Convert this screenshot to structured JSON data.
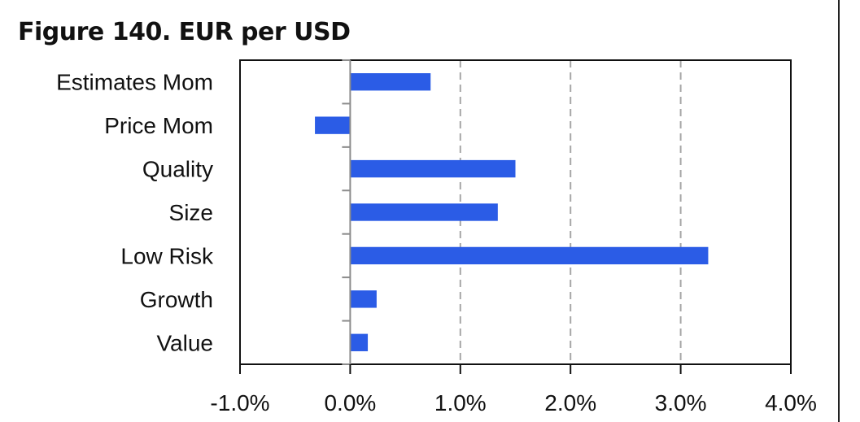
{
  "figure": {
    "title": "Figure 140. EUR per USD"
  },
  "chart_data": {
    "type": "bar",
    "orientation": "horizontal",
    "categories": [
      "Estimates Mom",
      "Price Mom",
      "Quality",
      "Size",
      "Low Risk",
      "Growth",
      "Value"
    ],
    "values": [
      0.0073,
      -0.0032,
      0.015,
      0.0134,
      0.0325,
      0.0024,
      0.0016
    ],
    "xlim": [
      -0.01,
      0.04
    ],
    "xticks": [
      -0.01,
      0.0,
      0.01,
      0.02,
      0.03,
      0.04
    ],
    "xtick_labels": [
      "-1.0%",
      "0.0%",
      "1.0%",
      "2.0%",
      "3.0%",
      "4.0%"
    ],
    "title": "Figure 140. EUR per USD",
    "xlabel": "",
    "ylabel": "",
    "grid": "vertical dashed",
    "legend": "none",
    "bar_color": "#2b5ce6",
    "grid_color": "#a6a6a6",
    "axis_color": "#111111"
  }
}
